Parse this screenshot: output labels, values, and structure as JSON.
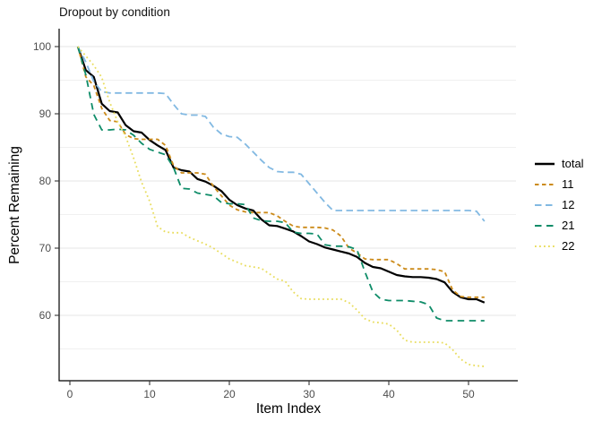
{
  "title": "Dropout by condition",
  "axes": {
    "x": {
      "label": "Item Index",
      "ticks": [
        0,
        10,
        20,
        30,
        40,
        50
      ]
    },
    "y": {
      "label": "Percent Remaining",
      "ticks": [
        100,
        90,
        80,
        70,
        60
      ],
      "minor_ticks": [
        95,
        85,
        75,
        65,
        55
      ]
    }
  },
  "legend": {
    "entries": [
      {
        "id": "total",
        "label": "total",
        "color": "#000000",
        "dash": "",
        "width": 2.2
      },
      {
        "id": "c11",
        "label": "11",
        "color": "#cc8b1a",
        "dash": "4.5 3.5",
        "width": 1.8
      },
      {
        "id": "c12",
        "label": "12",
        "color": "#82b9e2",
        "dash": "7.5 4.5",
        "width": 1.8
      },
      {
        "id": "c21",
        "label": "21",
        "color": "#0e8c68",
        "dash": "7.5 5.5",
        "width": 1.8
      },
      {
        "id": "c22",
        "label": "22",
        "color": "#e9dd5e",
        "dash": "1.8 3.2",
        "width": 1.8
      }
    ]
  },
  "chart_data": {
    "type": "line",
    "title": "Dropout by condition",
    "xlabel": "Item Index",
    "ylabel": "Percent Remaining",
    "xlim": [
      -1.3,
      56.2
    ],
    "ylim": [
      50.3,
      102.5
    ],
    "grid": "horizontal-only",
    "legend_position": "right",
    "x": "item index 1..52 (one point per item)",
    "series": [
      {
        "name": "total",
        "color": "#000000",
        "style": "solid",
        "values": [
          100,
          96.5,
          95.5,
          91.5,
          90.4,
          90.2,
          88.3,
          87.4,
          87.2,
          86.1,
          85.3,
          84.6,
          82.0,
          81.6,
          81.4,
          80.3,
          79.9,
          79.3,
          78.5,
          77.2,
          76.4,
          75.9,
          75.6,
          74.3,
          73.4,
          73.3,
          72.9,
          72.5,
          71.8,
          71.0,
          70.6,
          70.1,
          69.8,
          69.5,
          69.2,
          68.7,
          67.8,
          67.2,
          67.0,
          66.5,
          66.0,
          65.8,
          65.7,
          65.7,
          65.6,
          65.4,
          64.9,
          63.5,
          62.7,
          62.4,
          62.4,
          61.9
        ]
      },
      {
        "name": "11",
        "color": "#cc8b1a",
        "style": "dashed",
        "values": [
          100,
          95.5,
          94.2,
          90.8,
          89.0,
          88.8,
          86.9,
          86.3,
          86.2,
          86.2,
          86.2,
          85.3,
          82.3,
          81.2,
          81.2,
          81.2,
          81.0,
          79.2,
          77.8,
          76.4,
          75.7,
          75.4,
          75.3,
          75.3,
          75.3,
          74.8,
          74.0,
          73.3,
          73.1,
          73.1,
          73.1,
          73.0,
          72.7,
          71.8,
          70.0,
          69.3,
          68.4,
          68.3,
          68.3,
          68.3,
          67.7,
          66.9,
          66.9,
          66.9,
          66.9,
          66.8,
          66.5,
          63.8,
          62.8,
          62.7,
          62.7,
          62.7
        ]
      },
      {
        "name": "12",
        "color": "#82b9e2",
        "style": "long-dashed",
        "values": [
          100,
          97.7,
          94.8,
          93.3,
          93.1,
          93.1,
          93.1,
          93.1,
          93.1,
          93.1,
          93.1,
          93.0,
          91.4,
          90.0,
          89.8,
          89.8,
          89.6,
          88.0,
          87.0,
          86.6,
          86.5,
          85.5,
          84.3,
          83.1,
          82.0,
          81.4,
          81.3,
          81.3,
          81.0,
          79.6,
          78.2,
          76.8,
          75.6,
          75.6,
          75.6,
          75.6,
          75.6,
          75.6,
          75.6,
          75.6,
          75.6,
          75.6,
          75.6,
          75.6,
          75.6,
          75.6,
          75.6,
          75.6,
          75.6,
          75.6,
          75.5,
          74.0
        ]
      },
      {
        "name": "21",
        "color": "#0e8c68",
        "style": "long-dashed",
        "values": [
          100,
          95.8,
          89.9,
          87.6,
          87.6,
          87.7,
          87.6,
          86.8,
          85.6,
          84.7,
          84.3,
          83.9,
          82.0,
          78.9,
          78.8,
          78.2,
          78.0,
          77.8,
          76.8,
          76.6,
          76.6,
          76.5,
          74.5,
          74.1,
          74.0,
          74.0,
          73.8,
          72.4,
          72.2,
          72.2,
          72.1,
          70.5,
          70.3,
          70.3,
          70.2,
          69.8,
          66.5,
          63.5,
          62.4,
          62.2,
          62.2,
          62.2,
          62.1,
          62.0,
          61.6,
          59.6,
          59.2,
          59.2,
          59.2,
          59.2,
          59.2,
          59.2
        ]
      },
      {
        "name": "22",
        "color": "#e9dd5e",
        "style": "dotted",
        "values": [
          100,
          98.6,
          97.2,
          95.4,
          91.7,
          88.8,
          86.6,
          83.4,
          79.8,
          77.0,
          73.2,
          72.4,
          72.3,
          72.3,
          71.6,
          71.1,
          70.6,
          70.0,
          69.2,
          68.4,
          67.9,
          67.4,
          67.2,
          67.0,
          66.2,
          65.4,
          65.1,
          63.5,
          62.5,
          62.4,
          62.4,
          62.4,
          62.4,
          62.4,
          61.9,
          60.8,
          59.5,
          59.0,
          58.9,
          58.7,
          57.8,
          56.3,
          56.0,
          56.0,
          56.0,
          56.0,
          55.9,
          54.9,
          53.5,
          52.7,
          52.5,
          52.4
        ]
      }
    ]
  }
}
